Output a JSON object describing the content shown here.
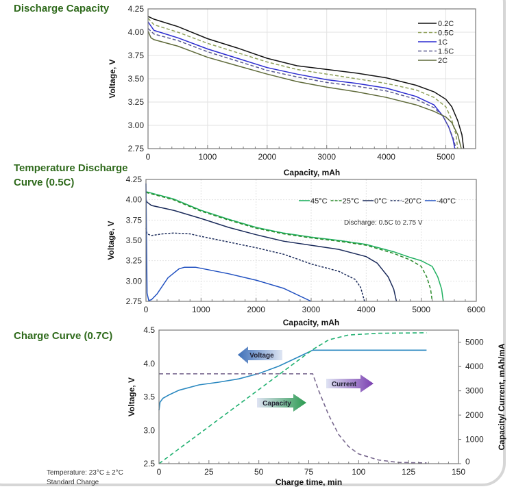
{
  "sections": {
    "discharge_capacity": "Discharge Capacity",
    "temperature_line1": "Temperature Discharge",
    "temperature_line2": "Curve (0.5C)",
    "charge_curve": "Charge Curve (0.7C)"
  },
  "notes": {
    "temperature": "Temperature:  23°C ±  2°C",
    "standard": "Standard Charge"
  },
  "arrows": {
    "voltage": "Voltage",
    "current": "Current",
    "capacity": "Capacity"
  },
  "chart_data": [
    {
      "type": "line",
      "title": "Discharge Capacity",
      "xlabel": "Capacity, mAh",
      "ylabel": "Voltage, V",
      "xlim": [
        0,
        5500
      ],
      "ylim": [
        2.75,
        4.25
      ],
      "xticks": [
        0,
        1000,
        2000,
        3000,
        4000,
        5000
      ],
      "yticks": [
        "2.75",
        "3.00",
        "3.25",
        "3.50",
        "3.75",
        "4.00",
        "4.25"
      ],
      "grid": true,
      "legend": "top-right",
      "series": [
        {
          "name": "0.2C",
          "color": "#111111",
          "dash": false,
          "points": [
            [
              0,
              4.17
            ],
            [
              100,
              4.14
            ],
            [
              500,
              4.06
            ],
            [
              1000,
              3.93
            ],
            [
              1500,
              3.83
            ],
            [
              2000,
              3.72
            ],
            [
              2500,
              3.64
            ],
            [
              3000,
              3.6
            ],
            [
              3500,
              3.56
            ],
            [
              4000,
              3.51
            ],
            [
              4500,
              3.43
            ],
            [
              4800,
              3.36
            ],
            [
              5000,
              3.28
            ],
            [
              5100,
              3.2
            ],
            [
              5200,
              3.05
            ],
            [
              5270,
              2.9
            ],
            [
              5300,
              2.75
            ]
          ]
        },
        {
          "name": "0.5C",
          "color": "#8fa05a",
          "dash": true,
          "points": [
            [
              0,
              4.15
            ],
            [
              100,
              4.08
            ],
            [
              500,
              4.0
            ],
            [
              1000,
              3.88
            ],
            [
              1500,
              3.78
            ],
            [
              2000,
              3.68
            ],
            [
              2500,
              3.6
            ],
            [
              3000,
              3.55
            ],
            [
              3500,
              3.5
            ],
            [
              4000,
              3.45
            ],
            [
              4500,
              3.38
            ],
            [
              4800,
              3.3
            ],
            [
              5000,
              3.2
            ],
            [
              5100,
              3.06
            ],
            [
              5170,
              2.9
            ],
            [
              5200,
              2.75
            ]
          ]
        },
        {
          "name": "1C",
          "color": "#2b2bd0",
          "dash": false,
          "points": [
            [
              0,
              4.11
            ],
            [
              100,
              4.02
            ],
            [
              500,
              3.94
            ],
            [
              1000,
              3.82
            ],
            [
              1500,
              3.72
            ],
            [
              2000,
              3.62
            ],
            [
              2500,
              3.55
            ],
            [
              3000,
              3.49
            ],
            [
              3500,
              3.45
            ],
            [
              4000,
              3.4
            ],
            [
              4500,
              3.31
            ],
            [
              4800,
              3.22
            ],
            [
              4950,
              3.1
            ],
            [
              5050,
              2.98
            ],
            [
              5120,
              2.85
            ],
            [
              5150,
              2.75
            ]
          ]
        },
        {
          "name": "1.5C",
          "color": "#5a5a90",
          "dash": true,
          "points": [
            [
              0,
              4.04
            ],
            [
              100,
              3.98
            ],
            [
              500,
              3.91
            ],
            [
              1000,
              3.79
            ],
            [
              1500,
              3.69
            ],
            [
              2000,
              3.59
            ],
            [
              2500,
              3.52
            ],
            [
              3000,
              3.46
            ],
            [
              3500,
              3.42
            ],
            [
              4000,
              3.37
            ],
            [
              4500,
              3.28
            ],
            [
              4800,
              3.19
            ],
            [
              4950,
              3.1
            ],
            [
              5050,
              2.98
            ],
            [
              5130,
              2.85
            ],
            [
              5170,
              2.75
            ]
          ]
        },
        {
          "name": "2C",
          "color": "#5f6a3a",
          "dash": false,
          "points": [
            [
              0,
              4.01
            ],
            [
              50,
              3.94
            ],
            [
              100,
              3.92
            ],
            [
              500,
              3.85
            ],
            [
              1000,
              3.73
            ],
            [
              1500,
              3.64
            ],
            [
              2000,
              3.55
            ],
            [
              2500,
              3.47
            ],
            [
              3000,
              3.41
            ],
            [
              3500,
              3.36
            ],
            [
              4000,
              3.3
            ],
            [
              4500,
              3.22
            ],
            [
              4800,
              3.15
            ],
            [
              5000,
              3.09
            ],
            [
              5100,
              3.03
            ],
            [
              5200,
              2.9
            ],
            [
              5260,
              2.75
            ]
          ]
        }
      ]
    },
    {
      "type": "line",
      "title": "Temperature Discharge Curve (0.5C)",
      "xlabel": "Capacity, mAh",
      "ylabel": "Voltage, V",
      "xlim": [
        0,
        6000
      ],
      "ylim": [
        2.75,
        4.25
      ],
      "xticks": [
        0,
        1000,
        2000,
        3000,
        4000,
        5000,
        6000
      ],
      "yticks": [
        "2.75",
        "3.00",
        "3.25",
        "3.50",
        "3.75",
        "4.00",
        "4.25"
      ],
      "grid": true,
      "legend": "top-right",
      "annotation": "Discharge: 0.5C to 2.75 V",
      "series": [
        {
          "name": "45°C",
          "color": "#1fb060",
          "dash": false,
          "points": [
            [
              0,
              4.1
            ],
            [
              500,
              4.01
            ],
            [
              1000,
              3.87
            ],
            [
              1500,
              3.76
            ],
            [
              2000,
              3.66
            ],
            [
              2500,
              3.59
            ],
            [
              3000,
              3.54
            ],
            [
              3500,
              3.5
            ],
            [
              4000,
              3.45
            ],
            [
              4500,
              3.36
            ],
            [
              4800,
              3.29
            ],
            [
              5000,
              3.25
            ],
            [
              5200,
              3.18
            ],
            [
              5300,
              3.05
            ],
            [
              5370,
              2.9
            ],
            [
              5400,
              2.75
            ]
          ]
        },
        {
          "name": "25°C",
          "color": "#2a8a2a",
          "dash": true,
          "points": [
            [
              0,
              4.09
            ],
            [
              500,
              4.0
            ],
            [
              1000,
              3.86
            ],
            [
              1500,
              3.75
            ],
            [
              2000,
              3.65
            ],
            [
              2500,
              3.58
            ],
            [
              3000,
              3.53
            ],
            [
              3500,
              3.49
            ],
            [
              4000,
              3.44
            ],
            [
              4500,
              3.34
            ],
            [
              4800,
              3.26
            ],
            [
              5000,
              3.18
            ],
            [
              5100,
              3.05
            ],
            [
              5170,
              2.9
            ],
            [
              5200,
              2.75
            ]
          ]
        },
        {
          "name": "0°C",
          "color": "#1a2a5a",
          "dash": false,
          "points": [
            [
              0,
              4.0
            ],
            [
              20,
              3.97
            ],
            [
              100,
              3.93
            ],
            [
              500,
              3.87
            ],
            [
              1000,
              3.77
            ],
            [
              1500,
              3.66
            ],
            [
              2000,
              3.57
            ],
            [
              2500,
              3.49
            ],
            [
              3000,
              3.44
            ],
            [
              3500,
              3.39
            ],
            [
              4000,
              3.3
            ],
            [
              4200,
              3.22
            ],
            [
              4400,
              3.05
            ],
            [
              4500,
              2.9
            ],
            [
              4550,
              2.75
            ]
          ]
        },
        {
          "name": "-20°C",
          "color": "#1a2a5a",
          "dash": true,
          "points": [
            [
              0,
              3.65
            ],
            [
              20,
              3.58
            ],
            [
              100,
              3.56
            ],
            [
              300,
              3.58
            ],
            [
              500,
              3.59
            ],
            [
              800,
              3.58
            ],
            [
              1000,
              3.55
            ],
            [
              1500,
              3.48
            ],
            [
              2000,
              3.41
            ],
            [
              2500,
              3.33
            ],
            [
              3000,
              3.21
            ],
            [
              3500,
              3.12
            ],
            [
              3800,
              3.02
            ],
            [
              3900,
              2.92
            ],
            [
              3970,
              2.75
            ]
          ]
        },
        {
          "name": "-40°C",
          "color": "#2050c0",
          "dash": false,
          "points": [
            [
              0,
              4.2
            ],
            [
              10,
              3.5
            ],
            [
              20,
              2.85
            ],
            [
              50,
              2.76
            ],
            [
              100,
              2.77
            ],
            [
              200,
              2.84
            ],
            [
              400,
              3.04
            ],
            [
              600,
              3.15
            ],
            [
              700,
              3.17
            ],
            [
              900,
              3.17
            ],
            [
              1500,
              3.09
            ],
            [
              2000,
              3.01
            ],
            [
              2500,
              2.91
            ],
            [
              3000,
              2.75
            ]
          ]
        }
      ]
    },
    {
      "type": "line",
      "title": "Charge Curve (0.7C)",
      "xlabel": "Charge time, min",
      "ylabel": "Voltage, V",
      "y2label": "Capacity/ Current, mAh/mA",
      "xlim": [
        0,
        150
      ],
      "ylim": [
        2.5,
        4.5
      ],
      "y2lim": [
        0,
        5500
      ],
      "xticks": [
        0,
        25,
        50,
        75,
        100,
        125,
        150
      ],
      "yticks": [
        "2.5",
        "3.0",
        "3.5",
        "4.0",
        "4.5"
      ],
      "y2ticks": [
        0,
        1000,
        2000,
        3000,
        4000,
        5000
      ],
      "grid": false,
      "series": [
        {
          "name": "Voltage",
          "axis": "left",
          "color": "#2a88c0",
          "dash": false,
          "points": [
            [
              0,
              3.3
            ],
            [
              0.5,
              3.42
            ],
            [
              2,
              3.48
            ],
            [
              5,
              3.53
            ],
            [
              10,
              3.6
            ],
            [
              20,
              3.68
            ],
            [
              30,
              3.72
            ],
            [
              40,
              3.77
            ],
            [
              50,
              3.85
            ],
            [
              60,
              3.96
            ],
            [
              70,
              4.1
            ],
            [
              77,
              4.2
            ],
            [
              134,
              4.2
            ]
          ]
        },
        {
          "name": "Capacity",
          "axis": "right",
          "color": "#20b070",
          "dash": true,
          "points": [
            [
              0,
              0
            ],
            [
              77,
              4700
            ],
            [
              85,
              5100
            ],
            [
              95,
              5300
            ],
            [
              110,
              5370
            ],
            [
              134,
              5390
            ]
          ]
        },
        {
          "name": "Current",
          "axis": "right",
          "color": "#7a6a90",
          "dash": true,
          "points": [
            [
              0,
              3700
            ],
            [
              77,
              3700
            ],
            [
              80,
              3000
            ],
            [
              85,
              2000
            ],
            [
              90,
              1200
            ],
            [
              95,
              700
            ],
            [
              100,
              400
            ],
            [
              110,
              150
            ],
            [
              120,
              50
            ],
            [
              134,
              30
            ]
          ]
        }
      ]
    }
  ]
}
